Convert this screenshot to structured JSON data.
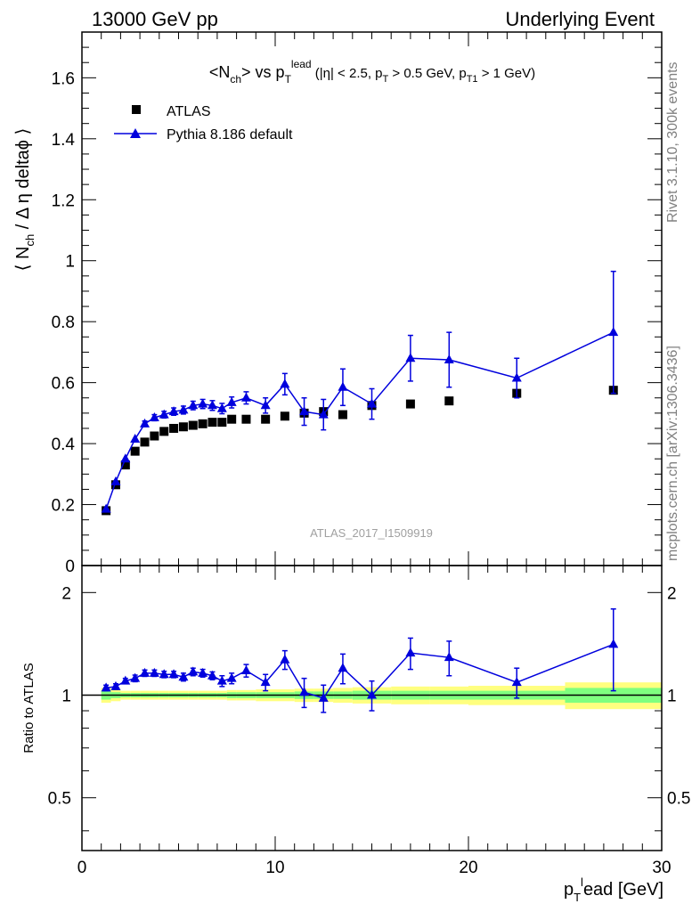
{
  "header": {
    "left": "13000 GeV pp",
    "right": "Underlying Event"
  },
  "side_labels": {
    "rivet": "Rivet 3.1.10,  300k events",
    "mcplots": "mcplots.cern.ch [arXiv:1306.3436]"
  },
  "colors": {
    "pythia": "#0000dd",
    "atlas": "#000000",
    "band_inner": "#7fff7f",
    "band_outer": "#ffff7f"
  },
  "chart_data": [
    {
      "type": "scatter",
      "title": "<N_ch> vs p_T^lead (|η| < 2.5, p_T > 0.5 GeV, p_T1 > 1 GeV)",
      "ylabel": "⟨ N_ch / Δ η deltaϕ ⟩",
      "xlim": [
        0,
        30
      ],
      "ylim": [
        0,
        1.75
      ],
      "yticks": [
        "0",
        "0.2",
        "0.4",
        "0.6",
        "0.8",
        "1",
        "1.2",
        "1.4",
        "1.6"
      ],
      "watermark": "ATLAS_2017_I1509919",
      "legend_position": "top-left",
      "series": [
        {
          "name": "ATLAS",
          "marker": "square",
          "x": [
            1.25,
            1.75,
            2.25,
            2.75,
            3.25,
            3.75,
            4.25,
            4.75,
            5.25,
            5.75,
            6.25,
            6.75,
            7.25,
            7.75,
            8.5,
            9.5,
            10.5,
            11.5,
            12.5,
            13.5,
            15,
            17,
            19,
            22.5,
            27.5
          ],
          "y": [
            0.18,
            0.265,
            0.33,
            0.375,
            0.405,
            0.425,
            0.44,
            0.45,
            0.455,
            0.46,
            0.465,
            0.47,
            0.47,
            0.48,
            0.48,
            0.48,
            0.49,
            0.5,
            0.505,
            0.495,
            0.525,
            0.53,
            0.54,
            0.565,
            0.575
          ]
        },
        {
          "name": "Pythia 8.186 default",
          "marker": "triangle",
          "x": [
            1.25,
            1.75,
            2.25,
            2.75,
            3.25,
            3.75,
            4.25,
            4.75,
            5.25,
            5.75,
            6.25,
            6.75,
            7.25,
            7.75,
            8.5,
            9.5,
            10.5,
            11.5,
            12.5,
            13.5,
            15,
            17,
            19,
            22.5,
            27.5
          ],
          "y": [
            0.185,
            0.275,
            0.35,
            0.415,
            0.465,
            0.485,
            0.495,
            0.505,
            0.51,
            0.525,
            0.53,
            0.525,
            0.515,
            0.535,
            0.55,
            0.525,
            0.595,
            0.505,
            0.495,
            0.585,
            0.53,
            0.68,
            0.675,
            0.615,
            0.765
          ],
          "yerr": [
            0.005,
            0.005,
            0.007,
            0.008,
            0.009,
            0.01,
            0.011,
            0.012,
            0.013,
            0.014,
            0.015,
            0.016,
            0.017,
            0.018,
            0.02,
            0.025,
            0.035,
            0.045,
            0.05,
            0.06,
            0.05,
            0.075,
            0.09,
            0.065,
            0.2
          ]
        }
      ]
    },
    {
      "type": "scatter",
      "ylabel": "Ratio to ATLAS",
      "xlabel": "p_T^lead [GeV]",
      "xlim": [
        0,
        30
      ],
      "ylim": [
        0.35,
        2.4
      ],
      "xticks": [
        "0",
        "10",
        "20",
        "30"
      ],
      "yticks": [
        "0.5",
        "1",
        "2"
      ],
      "series": [
        {
          "name": "Pythia 8.186 default",
          "x": [
            1.25,
            1.75,
            2.25,
            2.75,
            3.25,
            3.75,
            4.25,
            4.75,
            5.25,
            5.75,
            6.25,
            6.75,
            7.25,
            7.75,
            8.5,
            9.5,
            10.5,
            11.5,
            12.5,
            13.5,
            15,
            17,
            19,
            22.5,
            27.5
          ],
          "y": [
            1.05,
            1.06,
            1.1,
            1.12,
            1.16,
            1.16,
            1.15,
            1.15,
            1.13,
            1.17,
            1.16,
            1.14,
            1.1,
            1.12,
            1.18,
            1.09,
            1.27,
            1.02,
            0.98,
            1.2,
            1.0,
            1.33,
            1.29,
            1.09,
            1.41
          ],
          "yerr": [
            0.02,
            0.02,
            0.02,
            0.025,
            0.025,
            0.025,
            0.025,
            0.025,
            0.03,
            0.03,
            0.03,
            0.03,
            0.04,
            0.04,
            0.05,
            0.06,
            0.08,
            0.1,
            0.09,
            0.12,
            0.1,
            0.14,
            0.15,
            0.11,
            0.38
          ]
        }
      ],
      "band": {
        "x_edges": [
          1,
          1.5,
          2,
          2.5,
          3,
          3.5,
          4,
          4.5,
          5,
          5.5,
          6,
          6.5,
          7,
          7.5,
          8,
          9,
          10,
          11,
          12,
          13,
          14,
          16,
          18,
          20,
          25,
          30
        ],
        "inner": [
          0.03,
          0.02,
          0.015,
          0.015,
          0.015,
          0.015,
          0.015,
          0.015,
          0.015,
          0.015,
          0.015,
          0.015,
          0.015,
          0.02,
          0.02,
          0.02,
          0.02,
          0.025,
          0.025,
          0.025,
          0.03,
          0.03,
          0.03,
          0.03,
          0.05
        ],
        "outer": [
          0.05,
          0.04,
          0.03,
          0.03,
          0.03,
          0.03,
          0.03,
          0.03,
          0.03,
          0.03,
          0.03,
          0.03,
          0.03,
          0.035,
          0.035,
          0.04,
          0.04,
          0.045,
          0.045,
          0.05,
          0.055,
          0.06,
          0.06,
          0.065,
          0.09
        ]
      }
    }
  ]
}
